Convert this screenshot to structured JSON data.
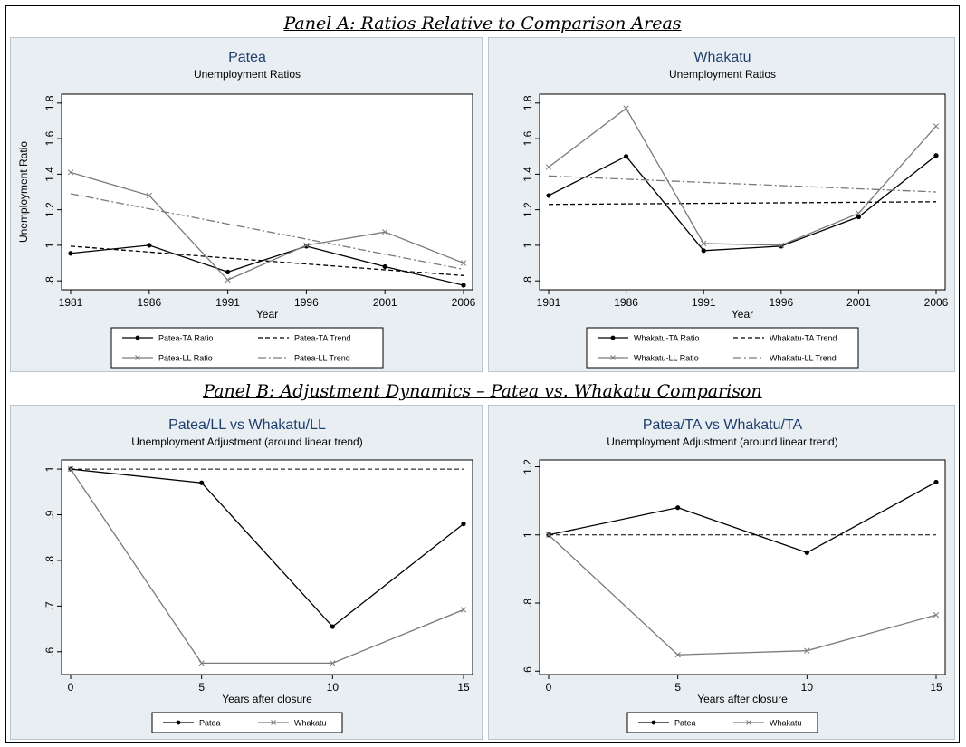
{
  "panels": {
    "a_title": "Panel A: Ratios Relative to Comparison Areas",
    "b_title": "Panel B: Adjustment Dynamics – Patea vs. Whakatu Comparison"
  },
  "colors": {
    "background": "#e9eef2",
    "series_dark": "#000000",
    "series_gray": "#7a7a7a"
  },
  "chart_data": [
    {
      "id": "patea",
      "type": "line",
      "title": "Patea",
      "subtitle": "Unemployment Ratios",
      "xlabel": "Year",
      "ylabel": "Unemployment Ratio",
      "x": [
        1981,
        1986,
        1991,
        1996,
        2001,
        2006
      ],
      "xlim": [
        1981,
        2006
      ],
      "ylim": [
        0.75,
        1.85
      ],
      "yticks": [
        ".8",
        "1",
        "1.2",
        "1.4",
        "1.6",
        "1.8"
      ],
      "xticks": [
        "1981",
        "1986",
        "1991",
        "1996",
        "2001",
        "2006"
      ],
      "legend_position": "bottom",
      "series": [
        {
          "name": "Patea-TA Ratio",
          "style": "solid-dot",
          "color": "#000000",
          "values": [
            0.955,
            1.0,
            0.85,
            0.995,
            0.88,
            0.775
          ]
        },
        {
          "name": "Patea-TA Trend",
          "style": "dash",
          "color": "#000000",
          "values": [
            0.995,
            0.962,
            0.928,
            0.895,
            0.862,
            0.83
          ]
        },
        {
          "name": "Patea-LL Ratio",
          "style": "solid-x",
          "color": "#7a7a7a",
          "values": [
            1.41,
            1.28,
            0.805,
            1.0,
            1.075,
            0.9
          ]
        },
        {
          "name": "Patea-LL Trend",
          "style": "dashdot",
          "color": "#7a7a7a",
          "values": [
            1.29,
            1.205,
            1.12,
            1.035,
            0.95,
            0.865
          ]
        }
      ]
    },
    {
      "id": "whakatu",
      "type": "line",
      "title": "Whakatu",
      "subtitle": "Unemployment Ratios",
      "xlabel": "Year",
      "ylabel": "",
      "x": [
        1981,
        1986,
        1991,
        1996,
        2001,
        2006
      ],
      "xlim": [
        1981,
        2006
      ],
      "ylim": [
        0.75,
        1.85
      ],
      "yticks": [
        ".8",
        "1",
        "1.2",
        "1.4",
        "1.6",
        "1.8"
      ],
      "xticks": [
        "1981",
        "1986",
        "1991",
        "1996",
        "2001",
        "2006"
      ],
      "legend_position": "bottom",
      "series": [
        {
          "name": "Whakatu-TA Ratio",
          "style": "solid-dot",
          "color": "#000000",
          "values": [
            1.28,
            1.5,
            0.97,
            0.995,
            1.16,
            1.505
          ]
        },
        {
          "name": "Whakatu-TA Trend",
          "style": "dash",
          "color": "#000000",
          "values": [
            1.23,
            1.233,
            1.236,
            1.239,
            1.242,
            1.245
          ]
        },
        {
          "name": "Whakatu-LL Ratio",
          "style": "solid-x",
          "color": "#7a7a7a",
          "values": [
            1.44,
            1.77,
            1.01,
            1.0,
            1.18,
            1.67
          ]
        },
        {
          "name": "Whakatu-LL Trend",
          "style": "dashdot",
          "color": "#7a7a7a",
          "values": [
            1.39,
            1.372,
            1.354,
            1.336,
            1.318,
            1.3
          ]
        }
      ]
    },
    {
      "id": "ll_comparison",
      "type": "line",
      "title": "Patea/LL vs Whakatu/LL",
      "subtitle": "Unemployment Adjustment (around linear trend)",
      "xlabel": "Years after closure",
      "ylabel": "",
      "x": [
        0,
        5,
        10,
        15
      ],
      "xlim": [
        0,
        15
      ],
      "ylim": [
        0.55,
        1.02
      ],
      "yticks": [
        ".6",
        ".7",
        ".8",
        ".9",
        "1"
      ],
      "xticks": [
        "0",
        "5",
        "10",
        "15"
      ],
      "reference_line": 1.0,
      "legend_position": "bottom",
      "series": [
        {
          "name": "Patea",
          "style": "solid-dot",
          "color": "#000000",
          "values": [
            1.0,
            0.97,
            0.655,
            0.88
          ]
        },
        {
          "name": "Whakatu",
          "style": "solid-x",
          "color": "#7a7a7a",
          "values": [
            1.0,
            0.575,
            0.575,
            0.692
          ]
        }
      ]
    },
    {
      "id": "ta_comparison",
      "type": "line",
      "title": "Patea/TA vs Whakatu/TA",
      "subtitle": "Unemployment Adjustment (around linear trend)",
      "xlabel": "Years after closure",
      "ylabel": "",
      "x": [
        0,
        5,
        10,
        15
      ],
      "xlim": [
        0,
        15
      ],
      "ylim": [
        0.59,
        1.22
      ],
      "yticks": [
        ".6",
        ".8",
        "1",
        "1.2"
      ],
      "xticks": [
        "0",
        "5",
        "10",
        "15"
      ],
      "reference_line": 1.0,
      "legend_position": "bottom",
      "series": [
        {
          "name": "Patea",
          "style": "solid-dot",
          "color": "#000000",
          "values": [
            1.0,
            1.08,
            0.948,
            1.155
          ]
        },
        {
          "name": "Whakatu",
          "style": "solid-x",
          "color": "#7a7a7a",
          "values": [
            1.0,
            0.648,
            0.66,
            0.765
          ]
        }
      ]
    }
  ]
}
